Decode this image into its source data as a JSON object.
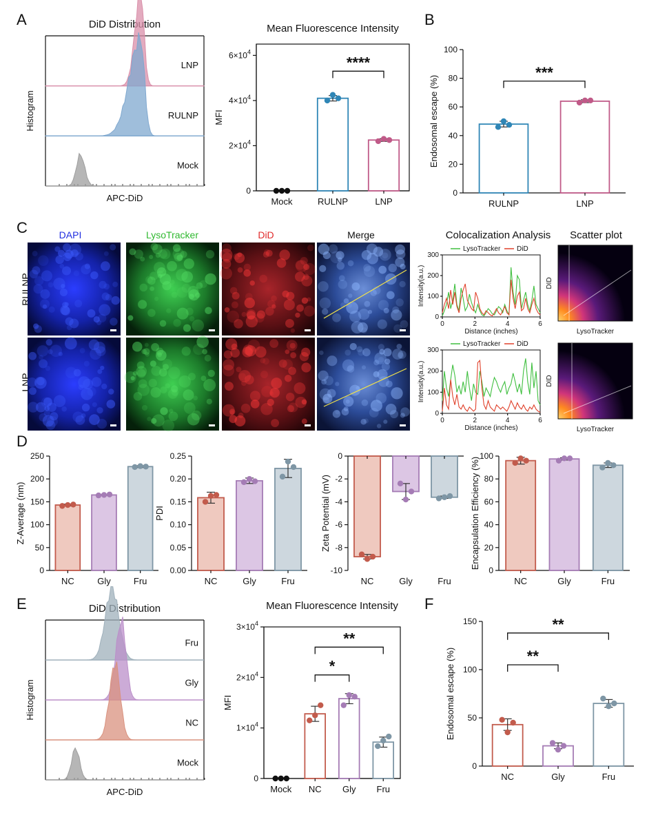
{
  "panels": {
    "A": "A",
    "B": "B",
    "C": "C",
    "D": "D",
    "E": "E",
    "F": "F"
  },
  "chart_data": [
    {
      "id": "A_hist",
      "type": "area",
      "title": "DiD Distribution",
      "xlabel": "APC-DiD",
      "ylabel": "Histogram",
      "series": [
        {
          "name": "LNP",
          "color": "#d98fa9",
          "peak": 0.63
        },
        {
          "name": "RULNP",
          "color": "#7fa8cf",
          "peak": 0.65
        },
        {
          "name": "Mock",
          "color": "#9e9e9e",
          "peak": 0.21
        }
      ]
    },
    {
      "id": "A_mfi",
      "type": "bar",
      "title": "Mean Fluorescence Intensity",
      "ylabel": "MFI",
      "categories": [
        "Mock",
        "RULNP",
        "LNP"
      ],
      "values": [
        0,
        41000,
        22500
      ],
      "points": [
        [
          0,
          0,
          0
        ],
        [
          40000,
          42500,
          41000
        ],
        [
          22000,
          23000,
          22500
        ]
      ],
      "errors": [
        0,
        1200,
        600
      ],
      "colors": [
        "#111111",
        "#2f86b6",
        "#c05a88"
      ],
      "ylim": [
        0,
        65000
      ],
      "yticks": [
        {
          "v": 0,
          "a": "0",
          "e": ""
        },
        {
          "v": 20000,
          "a": "2×10",
          "e": "4"
        },
        {
          "v": 40000,
          "a": "4×10",
          "e": "4"
        },
        {
          "v": 60000,
          "a": "6×10",
          "e": "4"
        }
      ],
      "sig": [
        {
          "a": 1,
          "b": 2,
          "label": "****",
          "y": 53000
        }
      ]
    },
    {
      "id": "B",
      "type": "bar",
      "ylabel": "Endosomal escape (%)",
      "categories": [
        "RULNP",
        "LNP"
      ],
      "values": [
        48,
        64
      ],
      "points": [
        [
          46,
          50,
          47.5
        ],
        [
          63,
          64.5,
          64.5
        ]
      ],
      "errors": [
        2,
        1
      ],
      "colors": [
        "#2f86b6",
        "#c05a88"
      ],
      "ylim": [
        0,
        100
      ],
      "yticks": [
        {
          "v": 0,
          "a": "0"
        },
        {
          "v": 20,
          "a": "20"
        },
        {
          "v": 40,
          "a": "40"
        },
        {
          "v": 60,
          "a": "60"
        },
        {
          "v": 80,
          "a": "80"
        },
        {
          "v": 100,
          "a": "100"
        }
      ],
      "sig": [
        {
          "a": 0,
          "b": 1,
          "label": "***",
          "y": 78
        }
      ]
    },
    {
      "id": "C_coloc1",
      "type": "line",
      "title": "Colocalization Analysis",
      "xlabel": "Distance (inches)",
      "ylabel": "Intensity(a.u.)",
      "xlim": [
        0,
        6
      ],
      "ylim": [
        0,
        300
      ],
      "xticks": [
        0,
        2,
        4,
        6
      ],
      "yticks": [
        0,
        100,
        200,
        300
      ],
      "legend": [
        "LysoTracker",
        "DiD"
      ],
      "legend_position": "top",
      "series": [
        {
          "name": "LysoTracker",
          "color": "#3fbf3f",
          "values": [
            5,
            30,
            60,
            120,
            40,
            80,
            160,
            60,
            30,
            140,
            90,
            30,
            50,
            110,
            70,
            40,
            20,
            60,
            30,
            10,
            5,
            20,
            40,
            30,
            15,
            10,
            30,
            50,
            40,
            20,
            60,
            30,
            10,
            240,
            120,
            60,
            200,
            180,
            40,
            80,
            120,
            60,
            30,
            80,
            150,
            60,
            40,
            20
          ]
        },
        {
          "name": "DiD",
          "color": "#e0402a",
          "values": [
            20,
            60,
            90,
            40,
            130,
            60,
            120,
            50,
            20,
            90,
            130,
            160,
            80,
            60,
            40,
            30,
            120,
            90,
            40,
            20,
            10,
            30,
            20,
            10,
            5,
            20,
            40,
            20,
            10,
            30,
            50,
            20,
            10,
            180,
            90,
            40,
            100,
            120,
            30,
            40,
            90,
            40,
            20,
            60,
            90,
            40,
            20,
            10
          ]
        }
      ]
    },
    {
      "id": "C_coloc2",
      "type": "line",
      "xlabel": "Distance (inches)",
      "ylabel": "Intensity(a.u.)",
      "xlim": [
        0,
        6
      ],
      "ylim": [
        0,
        300
      ],
      "xticks": [
        0,
        2,
        4,
        6
      ],
      "yticks": [
        0,
        100,
        200,
        300
      ],
      "legend": [
        "LysoTracker",
        "DiD"
      ],
      "legend_position": "top",
      "series": [
        {
          "name": "LysoTracker",
          "color": "#3fbf3f",
          "values": [
            60,
            200,
            120,
            80,
            160,
            230,
            180,
            100,
            130,
            90,
            150,
            100,
            200,
            120,
            60,
            140,
            100,
            90,
            200,
            150,
            80,
            120,
            100,
            80,
            130,
            170,
            150,
            120,
            100,
            130,
            150,
            90,
            120,
            140,
            190,
            150,
            100,
            140,
            90,
            200,
            260,
            150,
            90,
            240,
            120,
            200,
            60,
            40
          ]
        },
        {
          "name": "DiD",
          "color": "#e0402a",
          "values": [
            10,
            120,
            40,
            20,
            160,
            80,
            40,
            90,
            30,
            20,
            40,
            20,
            10,
            30,
            20,
            10,
            20,
            240,
            250,
            120,
            40,
            20,
            60,
            30,
            20,
            10,
            40,
            30,
            20,
            30,
            20,
            10,
            30,
            60,
            40,
            20,
            50,
            30,
            20,
            40,
            20,
            10,
            30,
            20,
            40,
            20,
            10,
            5
          ]
        }
      ]
    },
    {
      "id": "C_scatter",
      "type": "heatmap",
      "title": "Scatter plot",
      "xlabel": "LysoTracker",
      "ylabel": "DID"
    },
    {
      "id": "D1",
      "type": "bar",
      "ylabel": "Z-Average (nm)",
      "categories": [
        "NC",
        "Gly",
        "Fru"
      ],
      "values": [
        143,
        165,
        227
      ],
      "points": [
        [
          141,
          143,
          144
        ],
        [
          164,
          165,
          166
        ],
        [
          226,
          228,
          227
        ]
      ],
      "errors": [
        2,
        1,
        2
      ],
      "colors": [
        "#c25b4c",
        "#a57cb5",
        "#7e96a5"
      ],
      "fills": [
        "#efc9bf",
        "#dcc6e4",
        "#cdd7de"
      ],
      "ylim": [
        0,
        250
      ],
      "yticks": [
        {
          "v": 0,
          "a": "0"
        },
        {
          "v": 50,
          "a": "50"
        },
        {
          "v": 100,
          "a": "100"
        },
        {
          "v": 150,
          "a": "150"
        },
        {
          "v": 200,
          "a": "200"
        },
        {
          "v": 250,
          "a": "250"
        }
      ]
    },
    {
      "id": "D2",
      "type": "bar",
      "ylabel": "PDI",
      "categories": [
        "NC",
        "Gly",
        "Fru"
      ],
      "values": [
        0.159,
        0.196,
        0.223
      ],
      "points": [
        [
          0.15,
          0.163,
          0.165
        ],
        [
          0.193,
          0.2,
          0.195
        ],
        [
          0.205,
          0.238,
          0.226
        ]
      ],
      "errors": [
        0.012,
        0.006,
        0.02
      ],
      "colors": [
        "#c25b4c",
        "#a57cb5",
        "#7e96a5"
      ],
      "fills": [
        "#efc9bf",
        "#dcc6e4",
        "#cdd7de"
      ],
      "ylim": [
        0,
        0.25
      ],
      "yticks": [
        {
          "v": 0,
          "a": "0.00"
        },
        {
          "v": 0.05,
          "a": "0.05"
        },
        {
          "v": 0.1,
          "a": "0.10"
        },
        {
          "v": 0.15,
          "a": "0.15"
        },
        {
          "v": 0.2,
          "a": "0.20"
        },
        {
          "v": 0.25,
          "a": "0.25"
        }
      ]
    },
    {
      "id": "D3",
      "type": "bar",
      "ylabel": "Zeta Potential (mV)",
      "xaxis_top": true,
      "categories": [
        "NC",
        "Gly",
        "Fru"
      ],
      "values": [
        -8.8,
        -3.1,
        -3.6
      ],
      "points": [
        [
          -8.6,
          -9.0,
          -8.8
        ],
        [
          -2.4,
          -3.8,
          -3.1
        ],
        [
          -3.7,
          -3.6,
          -3.5
        ]
      ],
      "errors": [
        0.2,
        0.7,
        0.1
      ],
      "colors": [
        "#c25b4c",
        "#a57cb5",
        "#7e96a5"
      ],
      "fills": [
        "#efc9bf",
        "#dcc6e4",
        "#cdd7de"
      ],
      "ylim": [
        -10,
        0
      ],
      "yticks": [
        {
          "v": 0,
          "a": "0"
        },
        {
          "v": -2,
          "a": "-2"
        },
        {
          "v": -4,
          "a": "-4"
        },
        {
          "v": -6,
          "a": "-6"
        },
        {
          "v": -8,
          "a": "-8"
        },
        {
          "v": -10,
          "a": "-10"
        }
      ]
    },
    {
      "id": "D4",
      "type": "bar",
      "ylabel": "Encapsulation Efficiency (%)",
      "categories": [
        "NC",
        "Gly",
        "Fru"
      ],
      "values": [
        96,
        97.5,
        92
      ],
      "points": [
        [
          94,
          98,
          96
        ],
        [
          96,
          98,
          98
        ],
        [
          90,
          94,
          92
        ]
      ],
      "errors": [
        3,
        1,
        2
      ],
      "colors": [
        "#c25b4c",
        "#a57cb5",
        "#7e96a5"
      ],
      "fills": [
        "#efc9bf",
        "#dcc6e4",
        "#cdd7de"
      ],
      "ylim": [
        0,
        100
      ],
      "yticks": [
        {
          "v": 0,
          "a": "0"
        },
        {
          "v": 20,
          "a": "20"
        },
        {
          "v": 40,
          "a": "40"
        },
        {
          "v": 60,
          "a": "60"
        },
        {
          "v": 80,
          "a": "80"
        },
        {
          "v": 100,
          "a": "100"
        }
      ]
    },
    {
      "id": "E_hist",
      "type": "area",
      "title": "DiD Distribution",
      "xlabel": "APC-DiD",
      "ylabel": "Histogram",
      "series": [
        {
          "name": "Fru",
          "color": "#9fb0bb",
          "peak": 0.45
        },
        {
          "name": "Gly",
          "color": "#bb8fc9",
          "peak": 0.5
        },
        {
          "name": "NC",
          "color": "#d9927f",
          "peak": 0.48
        },
        {
          "name": "Mock",
          "color": "#9e9e9e",
          "peak": 0.2
        }
      ]
    },
    {
      "id": "E_mfi",
      "type": "bar",
      "title": "Mean Fluorescence Intensity",
      "ylabel": "MFI",
      "categories": [
        "Mock",
        "NC",
        "Gly",
        "Fru"
      ],
      "values": [
        0,
        12800,
        15800,
        7200
      ],
      "points": [
        [
          0,
          0,
          0
        ],
        [
          11500,
          12500,
          14500
        ],
        [
          14500,
          16500,
          16200
        ],
        [
          6400,
          7500,
          8300
        ]
      ],
      "errors": [
        0,
        1500,
        1000,
        1000
      ],
      "colors": [
        "#111111",
        "#c25b4c",
        "#a57cb5",
        "#7e96a5"
      ],
      "ylim": [
        0,
        30000
      ],
      "yticks": [
        {
          "v": 0,
          "a": "0",
          "e": ""
        },
        {
          "v": 10000,
          "a": "1×10",
          "e": "4"
        },
        {
          "v": 20000,
          "a": "2×10",
          "e": "4"
        },
        {
          "v": 30000,
          "a": "3×10",
          "e": "4"
        }
      ],
      "sig": [
        {
          "a": 1,
          "b": 2,
          "label": "*",
          "y": 20500
        },
        {
          "a": 1,
          "b": 3,
          "label": "**",
          "y": 26000
        }
      ]
    },
    {
      "id": "F",
      "type": "bar",
      "ylabel": "Endosomal escape (%)",
      "categories": [
        "NC",
        "Gly",
        "Fru"
      ],
      "values": [
        43,
        21,
        65
      ],
      "points": [
        [
          48,
          35,
          45
        ],
        [
          24,
          17,
          21
        ],
        [
          70,
          62,
          65
        ]
      ],
      "errors": [
        6,
        3,
        4
      ],
      "colors": [
        "#c25b4c",
        "#a57cb5",
        "#7e96a5"
      ],
      "ylim": [
        0,
        150
      ],
      "yticks": [
        {
          "v": 0,
          "a": "0"
        },
        {
          "v": 50,
          "a": "50"
        },
        {
          "v": 100,
          "a": "100"
        },
        {
          "v": 150,
          "a": "150"
        }
      ],
      "sig": [
        {
          "a": 0,
          "b": 1,
          "label": "**",
          "y": 105
        },
        {
          "a": 0,
          "b": 2,
          "label": "**",
          "y": 138
        }
      ]
    }
  ],
  "micrographs": {
    "columns": [
      "DAPI",
      "LysoTracker",
      "DiD",
      "Merge"
    ],
    "column_colors": [
      "#1f2de0",
      "#2fb82f",
      "#e02a2a",
      "#111111"
    ],
    "rows": [
      "RULNP",
      "LNP"
    ]
  }
}
